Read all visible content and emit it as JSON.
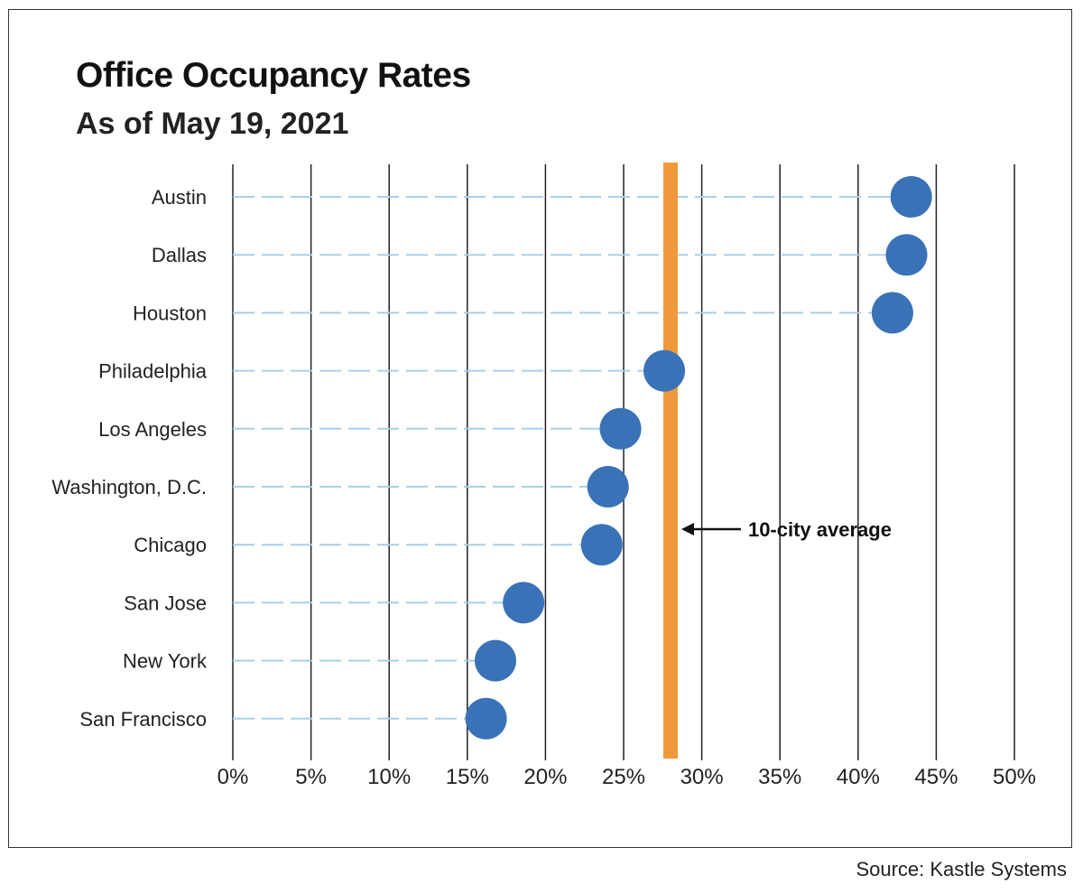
{
  "chart_data": {
    "type": "scatter",
    "title": "Office Occupancy Rates",
    "subtitle": "As of May 19, 2021",
    "source": "Source: Kastle Systems",
    "categories": [
      "Austin",
      "Dallas",
      "Houston",
      "Philadelphia",
      "Los Angeles",
      "Washington, D.C.",
      "Chicago",
      "San Jose",
      "New York",
      "San Francisco"
    ],
    "values": [
      43.4,
      43.1,
      42.2,
      27.6,
      24.8,
      24.0,
      23.6,
      18.6,
      16.8,
      16.2
    ],
    "xlim": [
      0,
      50
    ],
    "xticks": [
      0,
      5,
      10,
      15,
      20,
      25,
      30,
      35,
      40,
      45,
      50
    ],
    "xtick_labels": [
      "0%",
      "5%",
      "10%",
      "15%",
      "20%",
      "25%",
      "30%",
      "35%",
      "40%",
      "45%",
      "50%"
    ],
    "average": {
      "value": 28.0,
      "label": "10-city average"
    },
    "grid": true,
    "colors": {
      "point": "#3a72b8",
      "average_line": "#f0993c",
      "leader_line": "#a8d0e8",
      "grid": "#222222"
    }
  }
}
